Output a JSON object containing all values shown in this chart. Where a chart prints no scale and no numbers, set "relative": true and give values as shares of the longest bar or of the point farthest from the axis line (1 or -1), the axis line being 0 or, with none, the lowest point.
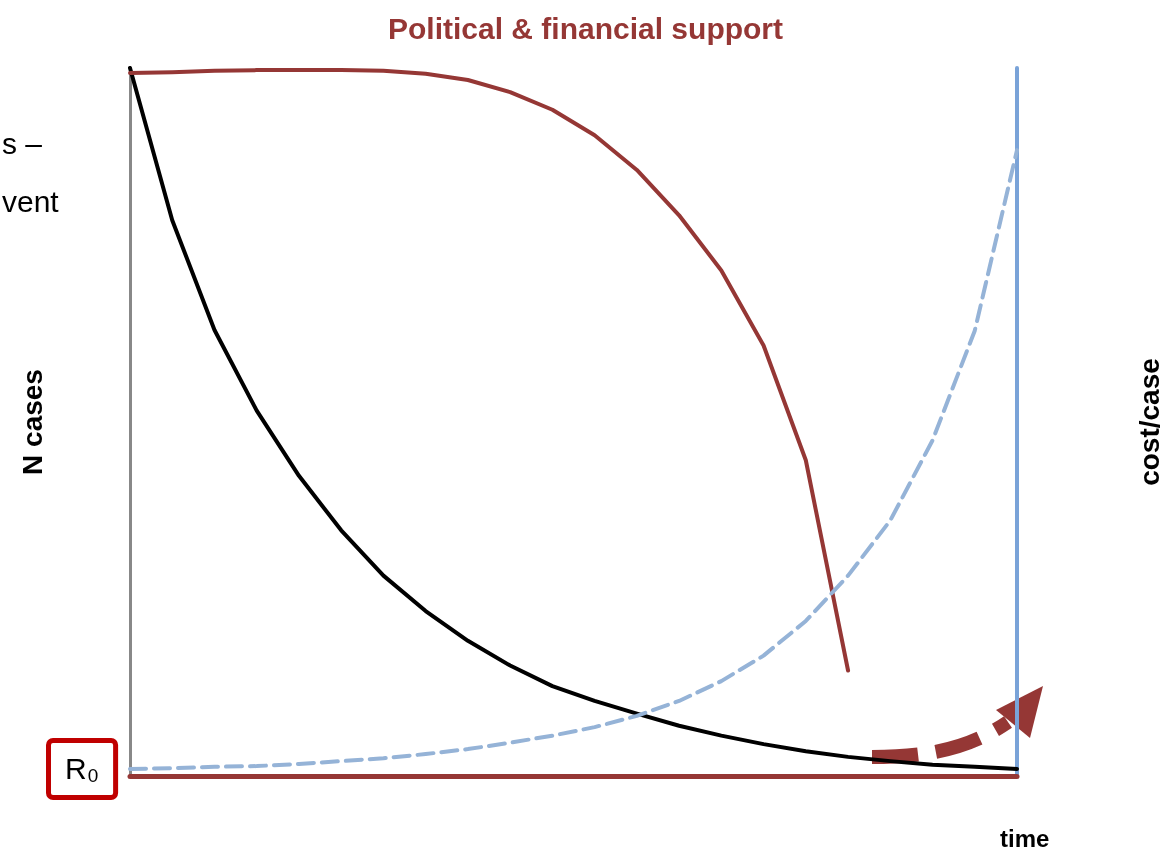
{
  "chart_data": {
    "type": "line",
    "title": "Political & financial support",
    "xlabel": "time",
    "ylabel": "N cases",
    "y2label": "cost/case",
    "relative": true,
    "categories": [
      null,
      null,
      null,
      null,
      null,
      null,
      null,
      null,
      null,
      null,
      null,
      null,
      null,
      null,
      null,
      null,
      null,
      null,
      null,
      null,
      null,
      null
    ],
    "series": [
      {
        "color": "#000000",
        "values": [
          1.0,
          0.785,
          0.63,
          0.516,
          0.424,
          0.347,
          0.283,
          0.233,
          0.191,
          0.156,
          0.127,
          0.106,
          0.088,
          0.071,
          0.057,
          0.045,
          0.035,
          0.027,
          0.021,
          0.016,
          0.013,
          0.01
        ]
      },
      {
        "color": "#953735",
        "values": [
          0.993,
          0.994,
          0.996,
          0.997,
          0.997,
          0.997,
          0.996,
          0.992,
          0.983,
          0.966,
          0.941,
          0.905,
          0.856,
          0.792,
          0.714,
          0.608,
          0.446,
          0.149,
          null,
          null,
          null,
          null
        ]
      },
      {
        "color": "#95b3d7",
        "line_style": "dashed",
        "values": [
          0.01,
          0.011,
          0.013,
          0.014,
          0.017,
          0.021,
          0.025,
          0.031,
          0.038,
          0.047,
          0.057,
          0.069,
          0.085,
          0.106,
          0.134,
          0.17,
          0.219,
          0.283,
          0.361,
          0.474,
          0.629,
          0.884
        ]
      }
    ],
    "annotations": [
      "s –",
      "vent",
      "R₀"
    ],
    "grid": false,
    "marker": "none",
    "line_style": "solid"
  }
}
